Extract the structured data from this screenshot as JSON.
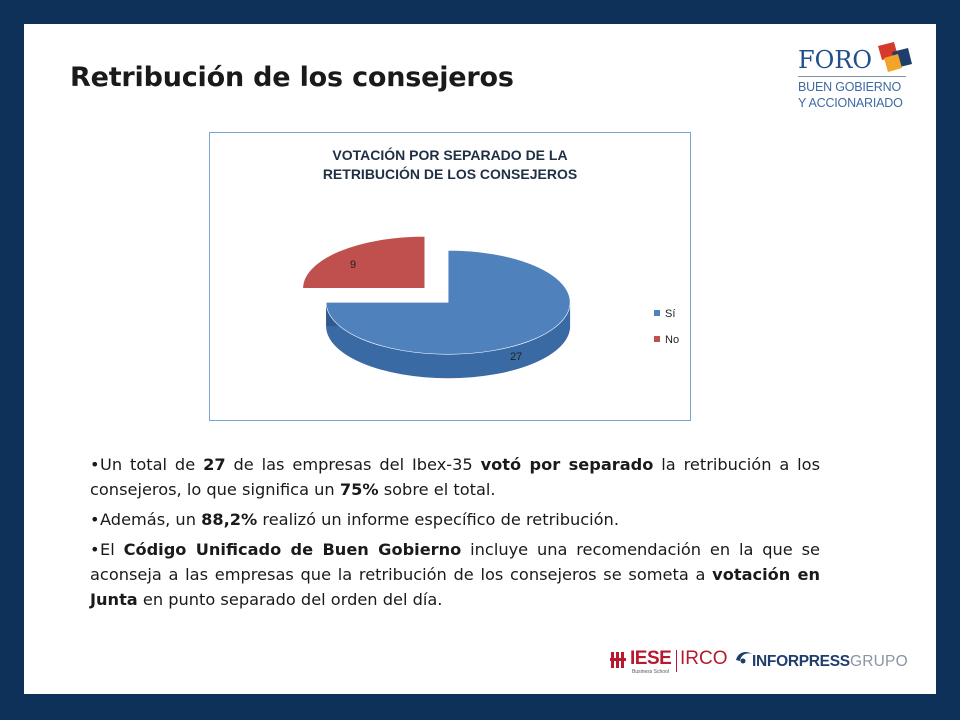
{
  "slide": {
    "title": "Retribución de los consejeros"
  },
  "logo_foro": {
    "word": "FORO",
    "line1": "BUEN GOBIERNO",
    "line2": "Y ACCIONARIADO",
    "colors": {
      "text": "#1f4f8c",
      "red": "#d63a2a",
      "orange": "#f0a52a",
      "navy": "#1f3e6b"
    }
  },
  "chart_data": {
    "type": "pie",
    "title_lines": [
      "VOTACIÓN POR SEPARADO DE LA",
      "RETRIBUCIÓN DE LOS CONSEJEROS"
    ],
    "style": "3d-exploded",
    "legend_position": "right",
    "series": [
      {
        "name": "Sí",
        "value": 27,
        "color": "#4f81bd",
        "dark": "#2e5a8f"
      },
      {
        "name": "No",
        "value": 9,
        "color": "#c0504d",
        "dark": "#5a2220"
      }
    ]
  },
  "bullets": [
    {
      "parts": [
        {
          "t": "Un total de "
        },
        {
          "t": "27",
          "b": true
        },
        {
          "t": " de las empresas del Ibex-35 "
        },
        {
          "t": "votó por separado",
          "b": true
        },
        {
          "t": " la retribución a los consejeros, lo que significa un "
        },
        {
          "t": "75%",
          "b": true
        },
        {
          "t": " sobre el total."
        }
      ]
    },
    {
      "parts": [
        {
          "t": "Además, un "
        },
        {
          "t": "88,2%",
          "b": true
        },
        {
          "t": " realizó un informe específico de retribución."
        }
      ]
    },
    {
      "parts": [
        {
          "t": "El "
        },
        {
          "t": "Código Unificado de Buen Gobierno",
          "b": true
        },
        {
          "t": " incluye una recomendación en la que se aconseja a las empresas que la retribución de los consejeros se someta a "
        },
        {
          "t": "votación en Junta",
          "b": true
        },
        {
          "t": " en punto separado del orden del día."
        }
      ]
    }
  ],
  "footer": {
    "iese": "IESE",
    "iese_sub": "Business School",
    "irco": "IRCO",
    "inforpress": "INFORPRESS",
    "grupo": "GRUPO"
  }
}
